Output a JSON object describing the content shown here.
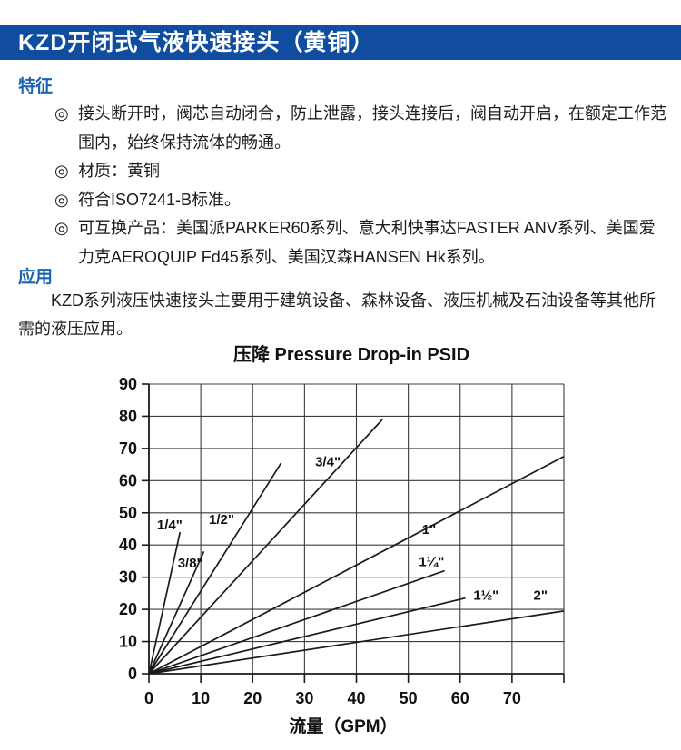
{
  "header": {
    "title": "KZD开闭式气液快速接头（黄铜）",
    "bg_color": "#104da0",
    "text_color": "#ffffff"
  },
  "features": {
    "heading": "特征",
    "bullet_symbol": "◎",
    "items": [
      "接头断开时，阀芯自动闭合，防止泄露，接头连接后，阀自动开启，在额定工作范围内，始终保持流体的畅通。",
      "材质：黄铜",
      "符合ISO7241-B标准。",
      "可互换产品：美国派PARKER60系列、意大利快事达FASTER ANV系列、美国爱力克AEROQUIP Fd45系列、美国汉森HANSEN Hk系列。"
    ]
  },
  "application": {
    "heading": "应用",
    "text": "KZD系列液压快速接头主要用于建筑设备、森林设备、液压机械及石油设备等其他所需的液压应用。"
  },
  "colors": {
    "heading_blue": "#1e64b0",
    "chart_ink": "#1b1b1b",
    "grid_ink": "#3c3c3c"
  },
  "chart_data": {
    "type": "line",
    "title": "压降 Pressure Drop-in PSID",
    "xlabel": "流量（GPM）",
    "ylabel": "",
    "xlim": [
      0,
      80
    ],
    "ylim": [
      0,
      90
    ],
    "grid": true,
    "legend_position": "inline-labels",
    "x_ticks": [
      {
        "v": 0,
        "label": "0"
      },
      {
        "v": 10,
        "label": "10"
      },
      {
        "v": 20,
        "label": "20"
      },
      {
        "v": 30,
        "label": "30"
      },
      {
        "v": 40,
        "label": "40"
      },
      {
        "v": 50,
        "label": "50"
      },
      {
        "v": 60,
        "label": "60"
      },
      {
        "v": 70,
        "label": "70"
      },
      {
        "v": 80,
        "label": ""
      }
    ],
    "y_ticks": [
      {
        "v": 0,
        "label": "0"
      },
      {
        "v": 10,
        "label": "10"
      },
      {
        "v": 20,
        "label": "20"
      },
      {
        "v": 30,
        "label": "30"
      },
      {
        "v": 40,
        "label": "40"
      },
      {
        "v": 50,
        "label": "50"
      },
      {
        "v": 60,
        "label": "60"
      },
      {
        "v": 70,
        "label": "70"
      },
      {
        "v": 80,
        "label": "80"
      },
      {
        "v": 90,
        "label": "90"
      }
    ],
    "series": [
      {
        "name": "1/4\"",
        "points": [
          [
            0,
            0
          ],
          [
            6,
            44
          ]
        ],
        "label_at": [
          4.0,
          44.8
        ]
      },
      {
        "name": "3/8\"",
        "points": [
          [
            0,
            0
          ],
          [
            10.6,
            38
          ]
        ],
        "label_at": [
          8.0,
          33.0
        ]
      },
      {
        "name": "1/2\"",
        "points": [
          [
            0,
            0
          ],
          [
            25.5,
            65.5
          ]
        ],
        "label_at": [
          14.0,
          46.5
        ]
      },
      {
        "name": "3/4\"",
        "points": [
          [
            0,
            0
          ],
          [
            45,
            79
          ]
        ],
        "label_at": [
          34.5,
          64.5
        ]
      },
      {
        "name": "1\"",
        "points": [
          [
            0,
            0
          ],
          [
            80,
            67.5
          ]
        ],
        "label_at": [
          54.0,
          43.5
        ]
      },
      {
        "name": "1¼\"",
        "points": [
          [
            0,
            0
          ],
          [
            57,
            32
          ]
        ],
        "label_at": [
          54.5,
          33.5
        ]
      },
      {
        "name": "1½\"",
        "points": [
          [
            0,
            0
          ],
          [
            61,
            23.5
          ]
        ],
        "label_at": [
          65.0,
          23.0
        ]
      },
      {
        "name": "2\"",
        "points": [
          [
            0,
            0
          ],
          [
            80,
            19.5
          ]
        ],
        "label_at": [
          75.5,
          23.0
        ]
      }
    ]
  }
}
